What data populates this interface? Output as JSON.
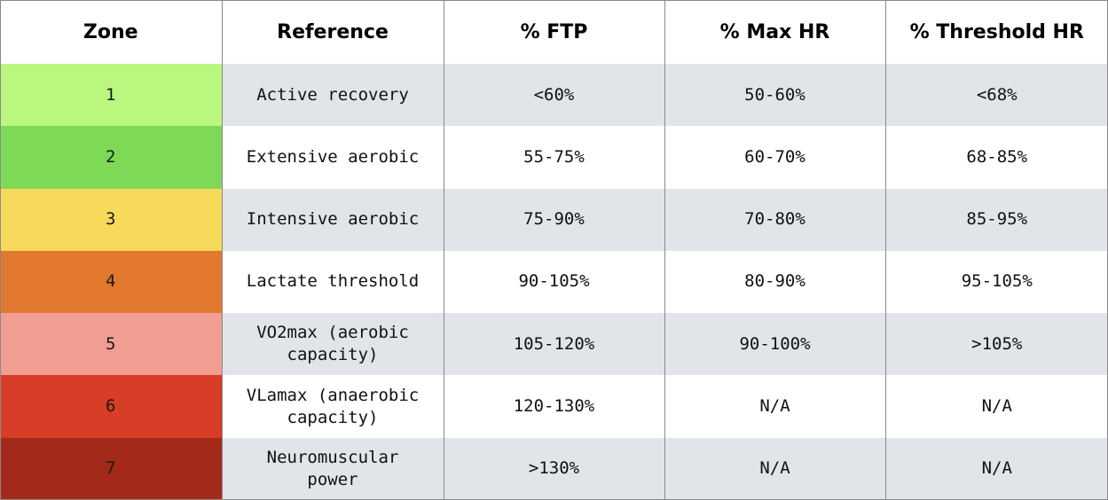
{
  "table": {
    "headers": [
      "Zone",
      "Reference",
      "% FTP",
      "% Max HR",
      "% Threshold HR"
    ],
    "rows": [
      {
        "zone": "1",
        "reference": "Active recovery",
        "ftp": "<60%",
        "max_hr": "50-60%",
        "threshold_hr": "<68%",
        "color": "#b9f77f"
      },
      {
        "zone": "2",
        "reference": "Extensive aerobic",
        "ftp": "55-75%",
        "max_hr": "60-70%",
        "threshold_hr": "68-85%",
        "color": "#7ed957"
      },
      {
        "zone": "3",
        "reference": "Intensive aerobic",
        "ftp": "75-90%",
        "max_hr": "70-80%",
        "threshold_hr": "85-95%",
        "color": "#f7d95c"
      },
      {
        "zone": "4",
        "reference": "Lactate threshold",
        "ftp": "90-105%",
        "max_hr": "80-90%",
        "threshold_hr": "95-105%",
        "color": "#e2792f"
      },
      {
        "zone": "5",
        "reference": "VO2max (aerobic capacity)",
        "ftp": "105-120%",
        "max_hr": "90-100%",
        "threshold_hr": ">105%",
        "color": "#f19d92"
      },
      {
        "zone": "6",
        "reference": "VLamax (anaerobic capacity)",
        "ftp": "120-130%",
        "max_hr": "N/A",
        "threshold_hr": "N/A",
        "color": "#d83d27"
      },
      {
        "zone": "7",
        "reference": "Neuromuscular power",
        "ftp": ">130%",
        "max_hr": "N/A",
        "threshold_hr": "N/A",
        "color": "#a32a1a"
      }
    ]
  }
}
